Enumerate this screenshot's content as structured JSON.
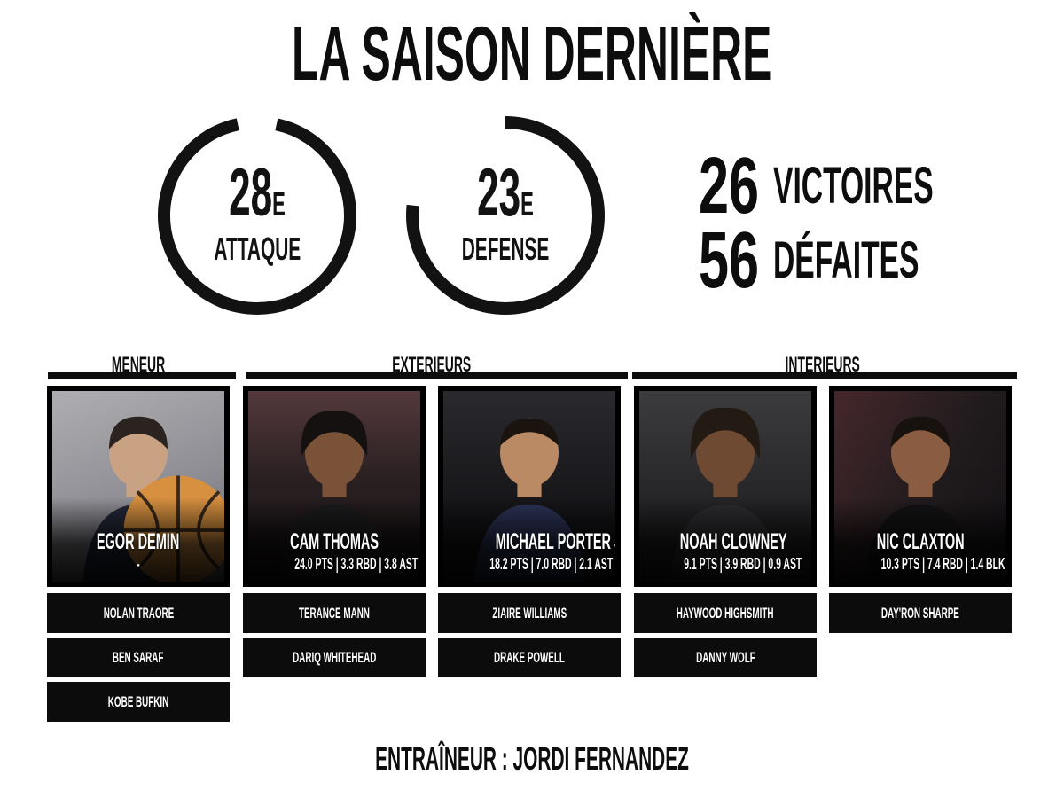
{
  "title": "LA SAISON DERNIÈRE",
  "gauges": [
    {
      "value": "28",
      "suffix": "E",
      "label": "ATTAQUE",
      "fraction": 0.933,
      "rotate": -78
    },
    {
      "value": "23",
      "suffix": "E",
      "label": "DEFENSE",
      "fraction": 0.767,
      "rotate": -90
    }
  ],
  "record": {
    "wins": "26",
    "wins_label": "VICTOIRES",
    "losses": "56",
    "losses_label": "DÉFAITES"
  },
  "sections": [
    {
      "label": "MENEUR"
    },
    {
      "label": "EXTERIEURS"
    },
    {
      "label": "INTERIEURS"
    }
  ],
  "starters": [
    {
      "name": "EGOR DEMIN",
      "stats": "-"
    },
    {
      "name": "CAM THOMAS",
      "stats": "24.0 PTS | 3.3 RBD | 3.8 AST"
    },
    {
      "name": "MICHAEL PORTER JR.",
      "stats": "18.2 PTS | 7.0 RBD | 2.1 AST"
    },
    {
      "name": "NOAH CLOWNEY",
      "stats": "9.1 PTS | 3.9 RBD | 0.9 AST"
    },
    {
      "name": "NIC CLAXTON",
      "stats": "10.3 PTS | 7.4 RBD | 1.4 BLK"
    }
  ],
  "bench": [
    [
      "NOLAN TRAORE",
      "BEN SARAF",
      "KOBE BUFKIN"
    ],
    [
      "TERANCE MANN",
      "DARIQ WHITEHEAD"
    ],
    [
      "ZIAIRE WILLIAMS",
      "DRAKE POWELL"
    ],
    [
      "HAYWOOD HIGHSMITH",
      "DANNY WOLF"
    ],
    [
      "DAY'RON SHARPE"
    ]
  ],
  "coach": "ENTRAÎNEUR : JORDI FERNANDEZ",
  "colors": {
    "ink": "#0d0d0d",
    "bg": "#ffffff",
    "card_text": "#ffffff",
    "ball": "#d99049"
  }
}
